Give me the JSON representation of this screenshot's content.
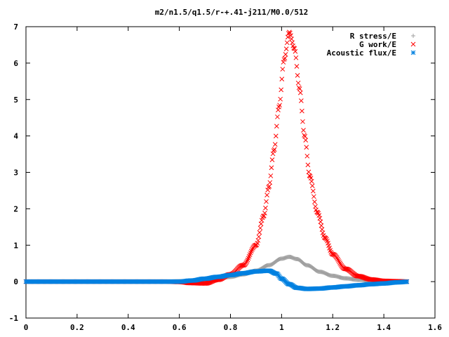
{
  "chart_data": {
    "type": "scatter",
    "title": "m2/n1.5/q1.5/r-+.41-j211/M0.0/512",
    "xlabel": "",
    "ylabel": "",
    "xlim": [
      0,
      1.6
    ],
    "ylim": [
      -1,
      7
    ],
    "x_ticks": [
      "0",
      "0.2",
      "0.4",
      "0.6",
      "0.8",
      "1",
      "1.2",
      "1.4",
      "1.6"
    ],
    "y_ticks": [
      "-1",
      "0",
      "1",
      "2",
      "3",
      "4",
      "5",
      "6",
      "7"
    ],
    "grid": false,
    "legend_position": "top-right",
    "series": [
      {
        "name": "R stress/E",
        "marker": "plus",
        "color": "#a0a0a0",
        "points": [
          [
            0,
            0
          ],
          [
            0.55,
            0
          ],
          [
            0.6,
            0.01
          ],
          [
            0.65,
            0.02
          ],
          [
            0.7,
            0.04
          ],
          [
            0.75,
            0.08
          ],
          [
            0.8,
            0.13
          ],
          [
            0.85,
            0.2
          ],
          [
            0.9,
            0.3
          ],
          [
            0.95,
            0.45
          ],
          [
            1.0,
            0.63
          ],
          [
            1.03,
            0.68
          ],
          [
            1.06,
            0.62
          ],
          [
            1.1,
            0.45
          ],
          [
            1.15,
            0.27
          ],
          [
            1.2,
            0.16
          ],
          [
            1.25,
            0.09
          ],
          [
            1.3,
            0.05
          ],
          [
            1.35,
            0.03
          ],
          [
            1.4,
            0.02
          ],
          [
            1.45,
            0.01
          ],
          [
            1.5,
            0
          ]
        ]
      },
      {
        "name": "G work/E",
        "marker": "cross",
        "color": "#ff0000",
        "points": [
          [
            0,
            0
          ],
          [
            0.55,
            0
          ],
          [
            0.6,
            -0.01
          ],
          [
            0.65,
            -0.04
          ],
          [
            0.7,
            -0.05
          ],
          [
            0.75,
            0.05
          ],
          [
            0.8,
            0.2
          ],
          [
            0.85,
            0.45
          ],
          [
            0.9,
            1.0
          ],
          [
            0.93,
            1.8
          ],
          [
            0.95,
            2.6
          ],
          [
            0.97,
            3.6
          ],
          [
            0.99,
            4.8
          ],
          [
            1.01,
            6.1
          ],
          [
            1.03,
            6.85
          ],
          [
            1.05,
            6.4
          ],
          [
            1.07,
            5.3
          ],
          [
            1.09,
            4.0
          ],
          [
            1.11,
            2.9
          ],
          [
            1.14,
            1.9
          ],
          [
            1.17,
            1.2
          ],
          [
            1.2,
            0.75
          ],
          [
            1.25,
            0.35
          ],
          [
            1.3,
            0.15
          ],
          [
            1.35,
            0.06
          ],
          [
            1.4,
            0.02
          ],
          [
            1.45,
            0.01
          ],
          [
            1.5,
            0
          ]
        ]
      },
      {
        "name": "Acoustic flux/E",
        "marker": "star",
        "color": "#0080e0",
        "points": [
          [
            0,
            0
          ],
          [
            0.6,
            0
          ],
          [
            0.65,
            0.03
          ],
          [
            0.7,
            0.08
          ],
          [
            0.75,
            0.13
          ],
          [
            0.8,
            0.18
          ],
          [
            0.85,
            0.23
          ],
          [
            0.9,
            0.28
          ],
          [
            0.95,
            0.3
          ],
          [
            0.98,
            0.22
          ],
          [
            1.0,
            0.08
          ],
          [
            1.03,
            -0.07
          ],
          [
            1.06,
            -0.17
          ],
          [
            1.1,
            -0.2
          ],
          [
            1.15,
            -0.19
          ],
          [
            1.2,
            -0.16
          ],
          [
            1.25,
            -0.13
          ],
          [
            1.3,
            -0.1
          ],
          [
            1.35,
            -0.07
          ],
          [
            1.4,
            -0.05
          ],
          [
            1.45,
            -0.02
          ],
          [
            1.5,
            0
          ]
        ]
      }
    ]
  }
}
